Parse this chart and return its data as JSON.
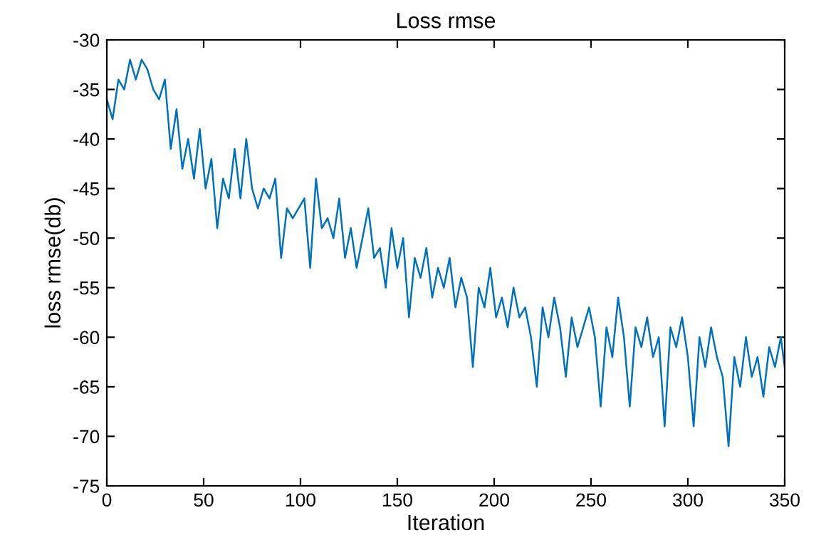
{
  "chart_data": {
    "type": "line",
    "title": "Loss rmse",
    "xlabel": "Iteration",
    "ylabel": "loss rmse(db)",
    "xlim": [
      0,
      350
    ],
    "xticks": [
      0,
      50,
      100,
      150,
      200,
      250,
      300,
      350
    ],
    "ylim": [
      -75,
      -30
    ],
    "yticks": [
      -75,
      -70,
      -65,
      -60,
      -55,
      -50,
      -45,
      -40,
      -35,
      -30
    ],
    "grid": false,
    "legend": false,
    "marker": "none",
    "line_style": "solid",
    "x": [
      0,
      3,
      6,
      9,
      12,
      15,
      18,
      21,
      24,
      27,
      30,
      33,
      36,
      39,
      42,
      45,
      48,
      51,
      54,
      57,
      60,
      63,
      66,
      69,
      72,
      75,
      78,
      81,
      84,
      87,
      90,
      93,
      96,
      99,
      102,
      105,
      108,
      111,
      114,
      117,
      120,
      123,
      126,
      129,
      132,
      135,
      138,
      141,
      144,
      147,
      150,
      153,
      156,
      159,
      162,
      165,
      168,
      171,
      174,
      177,
      180,
      183,
      186,
      189,
      192,
      195,
      198,
      201,
      204,
      207,
      210,
      213,
      216,
      219,
      222,
      225,
      228,
      231,
      234,
      237,
      240,
      243,
      246,
      249,
      252,
      255,
      258,
      261,
      264,
      267,
      270,
      273,
      276,
      279,
      282,
      285,
      288,
      291,
      294,
      297,
      300,
      303,
      306,
      309,
      312,
      315,
      318,
      321,
      324,
      327,
      330,
      333,
      336,
      339,
      342,
      345,
      348,
      350
    ],
    "series": [
      {
        "color": "#0072bd",
        "values": [
          -36,
          -38,
          -34,
          -35,
          -32,
          -34,
          -32,
          -33,
          -35,
          -36,
          -34,
          -41,
          -37,
          -43,
          -40,
          -44,
          -39,
          -45,
          -42,
          -49,
          -44,
          -46,
          -41,
          -46,
          -40,
          -45,
          -47,
          -45,
          -46,
          -44,
          -52,
          -47,
          -48,
          -47,
          -46,
          -53,
          -44,
          -49,
          -48,
          -50,
          -46,
          -52,
          -49,
          -53,
          -50,
          -47,
          -52,
          -51,
          -55,
          -49,
          -53,
          -50,
          -58,
          -52,
          -54,
          -51,
          -56,
          -53,
          -55,
          -52,
          -57,
          -54,
          -56,
          -63,
          -55,
          -57,
          -53,
          -58,
          -56,
          -59,
          -55,
          -58,
          -57,
          -60,
          -65,
          -57,
          -60,
          -56,
          -59,
          -64,
          -58,
          -61,
          -59,
          -57,
          -60,
          -67,
          -59,
          -62,
          -56,
          -60,
          -67,
          -59,
          -61,
          -58,
          -62,
          -60,
          -69,
          -59,
          -61,
          -58,
          -62,
          -69,
          -60,
          -63,
          -59,
          -62,
          -64,
          -71,
          -62,
          -65,
          -60,
          -64,
          -62,
          -66,
          -61,
          -63,
          -60,
          -63
        ]
      }
    ]
  }
}
